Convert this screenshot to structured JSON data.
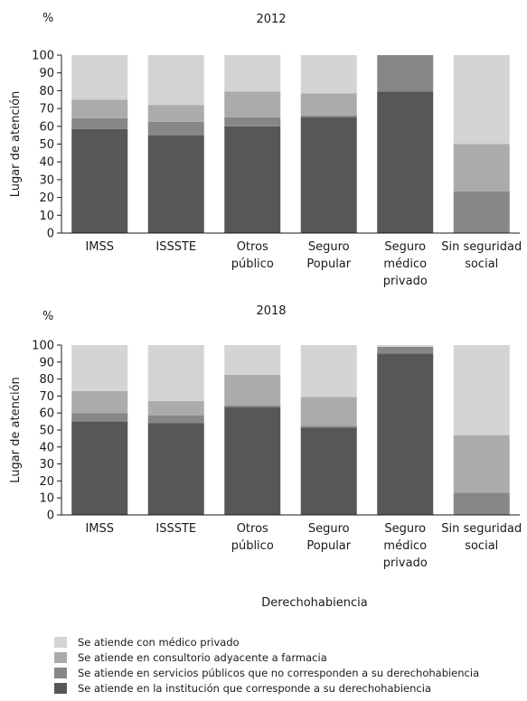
{
  "xlabel": "Derechohabiencia",
  "chart_data": [
    {
      "type": "bar",
      "stacked": true,
      "title": "2012",
      "unit_label": "%",
      "ylabel": "Lugar de atención",
      "ylim": [
        0,
        100
      ],
      "yticks": [
        0,
        10,
        20,
        30,
        40,
        50,
        60,
        70,
        80,
        90,
        100
      ],
      "categories": [
        [
          "IMSS"
        ],
        [
          "ISSSTE"
        ],
        [
          "Otros",
          "público"
        ],
        [
          "Seguro",
          "Popular"
        ],
        [
          "Seguro",
          "médico",
          "privado"
        ],
        [
          "Sin seguridad",
          "social"
        ]
      ],
      "series": [
        {
          "name": "Se atiende en la institución que corresponde a su derechohabiencia",
          "values": [
            58.5,
            55,
            60,
            65,
            79.5,
            0
          ]
        },
        {
          "name": "Se atiende en servicios públicos que no corresponden a su derechohabiencia",
          "values": [
            6,
            7.5,
            5,
            1,
            20.5,
            23.5
          ]
        },
        {
          "name": "Se atiende en consultorio adyacente a farmacia",
          "values": [
            10.5,
            9.5,
            14.5,
            12.5,
            0,
            26.5
          ]
        },
        {
          "name": "Se atiende con médico privado",
          "values": [
            25,
            28,
            20.5,
            21.5,
            0,
            50
          ]
        }
      ]
    },
    {
      "type": "bar",
      "stacked": true,
      "title": "2018",
      "unit_label": "%",
      "ylabel": "Lugar de atención",
      "ylim": [
        0,
        100
      ],
      "yticks": [
        0,
        10,
        20,
        30,
        40,
        50,
        60,
        70,
        80,
        90,
        100
      ],
      "categories": [
        [
          "IMSS"
        ],
        [
          "ISSSTE"
        ],
        [
          "Otros",
          "público"
        ],
        [
          "Seguro",
          "Popular"
        ],
        [
          "Seguro",
          "médico",
          "privado"
        ],
        [
          "Sin seguridad",
          "social"
        ]
      ],
      "series": [
        {
          "name": "Se atiende en la institución que corresponde a su derechohabiencia",
          "values": [
            55,
            54,
            63.5,
            51.5,
            95,
            0
          ]
        },
        {
          "name": "Se atiende en servicios públicos que no corresponden a su derechohabiencia",
          "values": [
            5,
            4.5,
            1,
            1,
            4,
            13
          ]
        },
        {
          "name": "Se atiende en consultorio adyacente a farmacia",
          "values": [
            13,
            8.5,
            18,
            17,
            0,
            34
          ]
        },
        {
          "name": "Se atiende con médico privado",
          "values": [
            27,
            33,
            17.5,
            30.5,
            1,
            53
          ]
        }
      ]
    }
  ],
  "colors": {
    "institucion": "#575757",
    "servicios_publicos": "#878787",
    "consultorio_farmacia": "#ababab",
    "medico_privado": "#d4d4d4",
    "axis": "#1a1a1a"
  },
  "legend": [
    {
      "label": "Se atiende con médico privado",
      "color": "#d4d4d4"
    },
    {
      "label": "Se atiende en consultorio adyacente a farmacia",
      "color": "#ababab"
    },
    {
      "label": "Se atiende en servicios públicos que no corresponden a su derechohabiencia",
      "color": "#878787"
    },
    {
      "label": "Se atiende en la institución que corresponde a su derechohabiencia",
      "color": "#575757"
    }
  ]
}
